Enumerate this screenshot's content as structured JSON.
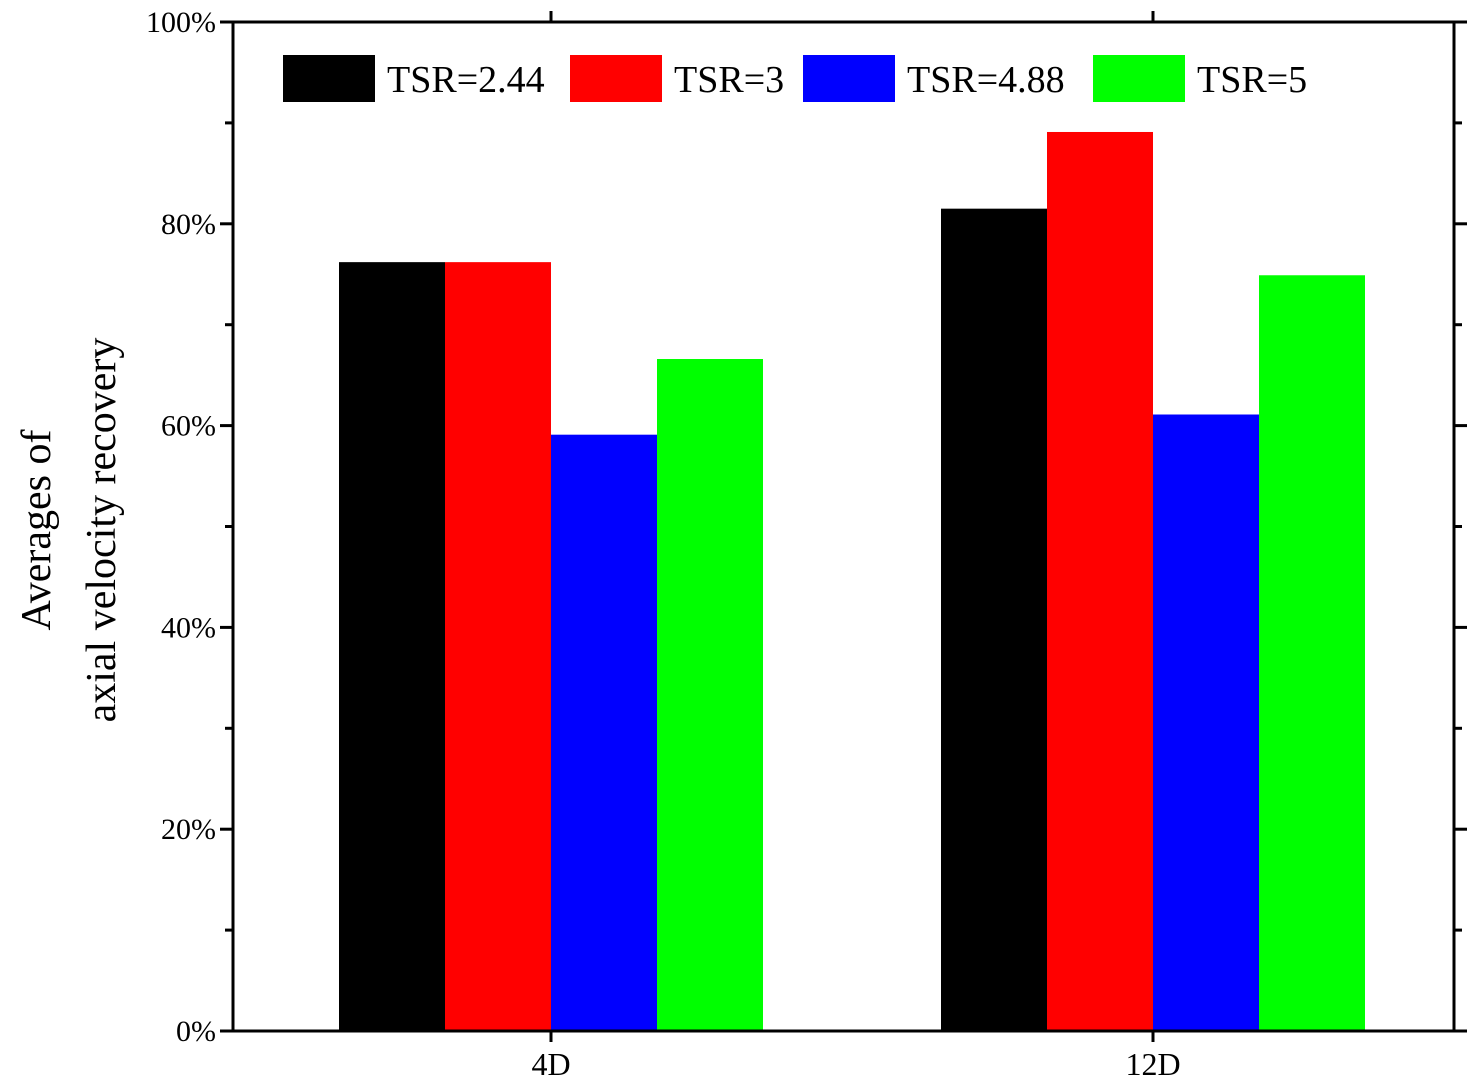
{
  "chart_data": {
    "type": "bar",
    "title": "",
    "xlabel": "",
    "ylabel_lines": [
      "Averages of",
      "axial velocity recovery"
    ],
    "categories": [
      "4D",
      "12D"
    ],
    "series": [
      {
        "name": "TSR=2.44",
        "color": "#000000",
        "values": [
          76.2,
          81.5
        ]
      },
      {
        "name": "TSR=3",
        "color": "#ff0000",
        "values": [
          76.2,
          89.1
        ]
      },
      {
        "name": "TSR=4.88",
        "color": "#0000ff",
        "values": [
          59.1,
          61.1
        ]
      },
      {
        "name": "TSR=5",
        "color": "#00ff00",
        "values": [
          66.6,
          74.9
        ]
      }
    ],
    "ylim": [
      0,
      100
    ],
    "yticks": [
      0,
      20,
      40,
      60,
      80,
      100
    ],
    "ytick_labels": [
      "0%",
      "20%",
      "40%",
      "60%",
      "80%",
      "100%"
    ],
    "grid": false,
    "legend_position": "top, horizontal"
  }
}
